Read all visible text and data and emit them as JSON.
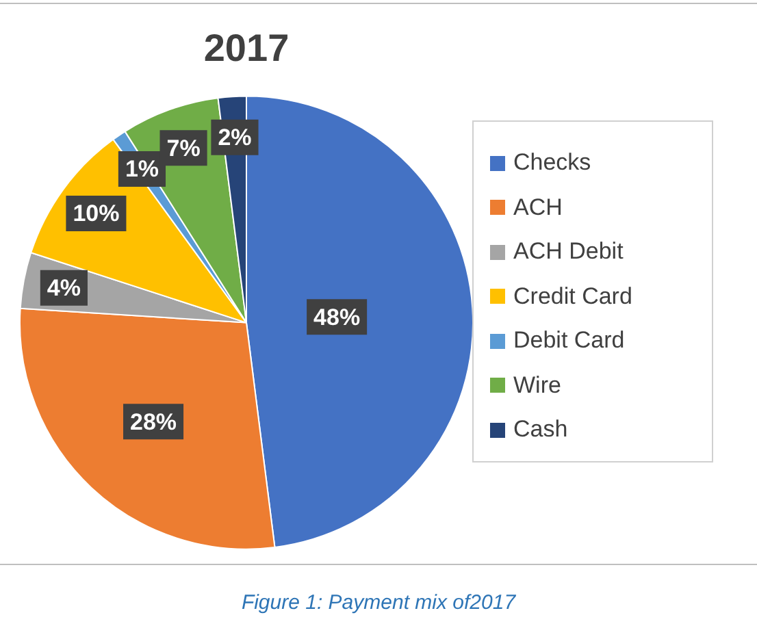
{
  "chart_data": {
    "type": "pie",
    "title": "2017",
    "categories": [
      "Checks",
      "ACH",
      "ACH Debit",
      "Credit Card",
      "Debit Card",
      "Wire",
      "Cash"
    ],
    "values": [
      48,
      28,
      4,
      10,
      1,
      7,
      2
    ],
    "colors": [
      "#4472c4",
      "#ed7d31",
      "#a5a5a5",
      "#ffc000",
      "#5b9bd5",
      "#70ad47",
      "#264478"
    ],
    "value_labels": [
      "48%",
      "28%",
      "4%",
      "10%",
      "1%",
      "7%",
      "2%"
    ],
    "legend": "right",
    "annotations": [
      "Figure 1: Payment mix of2017"
    ]
  }
}
